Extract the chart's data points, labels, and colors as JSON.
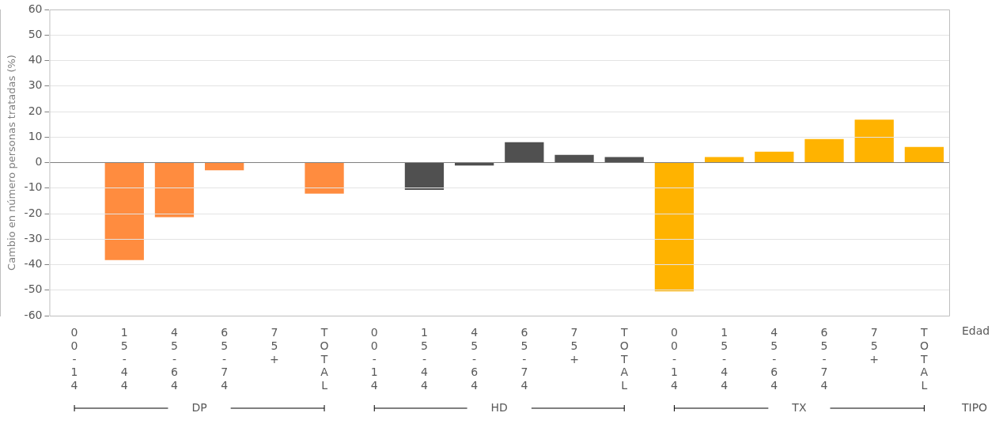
{
  "chart_data": {
    "type": "bar",
    "ylabel": "Cambio en número personas tratadas (%)",
    "xlabel": "Edad",
    "annotations": [
      "DP",
      "HD",
      "TX",
      "TIPO"
    ],
    "categories": [
      "00-14",
      "15-44",
      "45-64",
      "65-74",
      "75+",
      "TOTAL",
      "00-14",
      "15-44",
      "45-64",
      "65-74",
      "75+",
      "TOTAL",
      "00-14",
      "15-44",
      "45-64",
      "65-74",
      "75+",
      "TOTAL"
    ],
    "series": [
      {
        "color": "#ff8c3f",
        "values": [
          null,
          -38.2,
          -21.4,
          -3,
          null,
          -12.2,
          null,
          null,
          null,
          null,
          null,
          null,
          null,
          null,
          null,
          null,
          null,
          null
        ]
      },
      {
        "color": "#505050",
        "values": [
          null,
          null,
          null,
          null,
          null,
          null,
          null,
          -10.7,
          -1.2,
          8,
          3,
          2.2,
          null,
          null,
          null,
          null,
          null,
          null
        ]
      },
      {
        "color": "#ffb300",
        "values": [
          null,
          null,
          null,
          null,
          null,
          null,
          null,
          null,
          null,
          null,
          null,
          null,
          -50.5,
          2.2,
          4.3,
          9.2,
          16.8,
          6.1
        ]
      }
    ],
    "ylim": [
      -60,
      60
    ],
    "yticks": [
      -60,
      -50,
      -40,
      -30,
      -20,
      -10,
      0,
      10,
      20,
      30,
      40,
      50,
      60
    ],
    "grid": "y",
    "legend": false
  }
}
